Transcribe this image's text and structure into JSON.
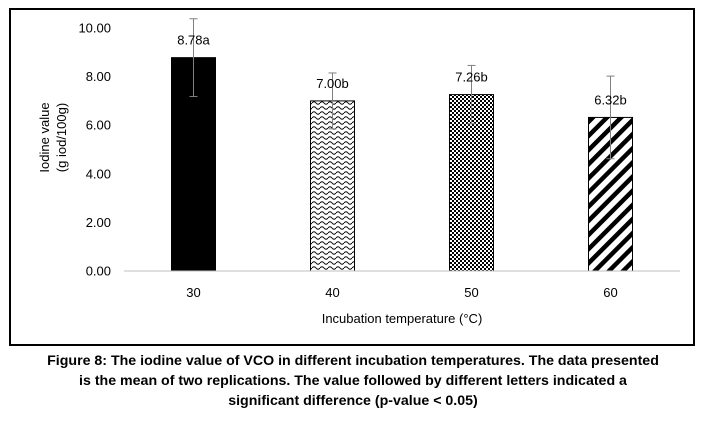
{
  "chart_data": {
    "type": "bar",
    "categories": [
      "30",
      "40",
      "50",
      "60"
    ],
    "values": [
      8.78,
      7.0,
      7.26,
      6.32
    ],
    "error": [
      1.6,
      1.15,
      1.2,
      1.7
    ],
    "data_labels": [
      "8.78a",
      "7.00b",
      "7.26b",
      "6.32b"
    ],
    "patterns": [
      "solid",
      "wave",
      "checker",
      "diagonal"
    ],
    "xlabel": "Incubation temperature (°C)",
    "ylabel_lines": [
      "Iodine value",
      "(g iod/100g)"
    ],
    "ylim": [
      0,
      10
    ],
    "yticks": [
      "0.00",
      "2.00",
      "4.00",
      "6.00",
      "8.00",
      "10.00"
    ],
    "grid": false,
    "bar_color": "#000000",
    "error_bar_color": "#808080"
  },
  "caption_lines": [
    "Figure 8: The iodine value of VCO in different incubation temperatures. The data presented",
    "is the mean of two replications. The value followed by different letters indicated a",
    "significant difference (p-value < 0.05)"
  ]
}
